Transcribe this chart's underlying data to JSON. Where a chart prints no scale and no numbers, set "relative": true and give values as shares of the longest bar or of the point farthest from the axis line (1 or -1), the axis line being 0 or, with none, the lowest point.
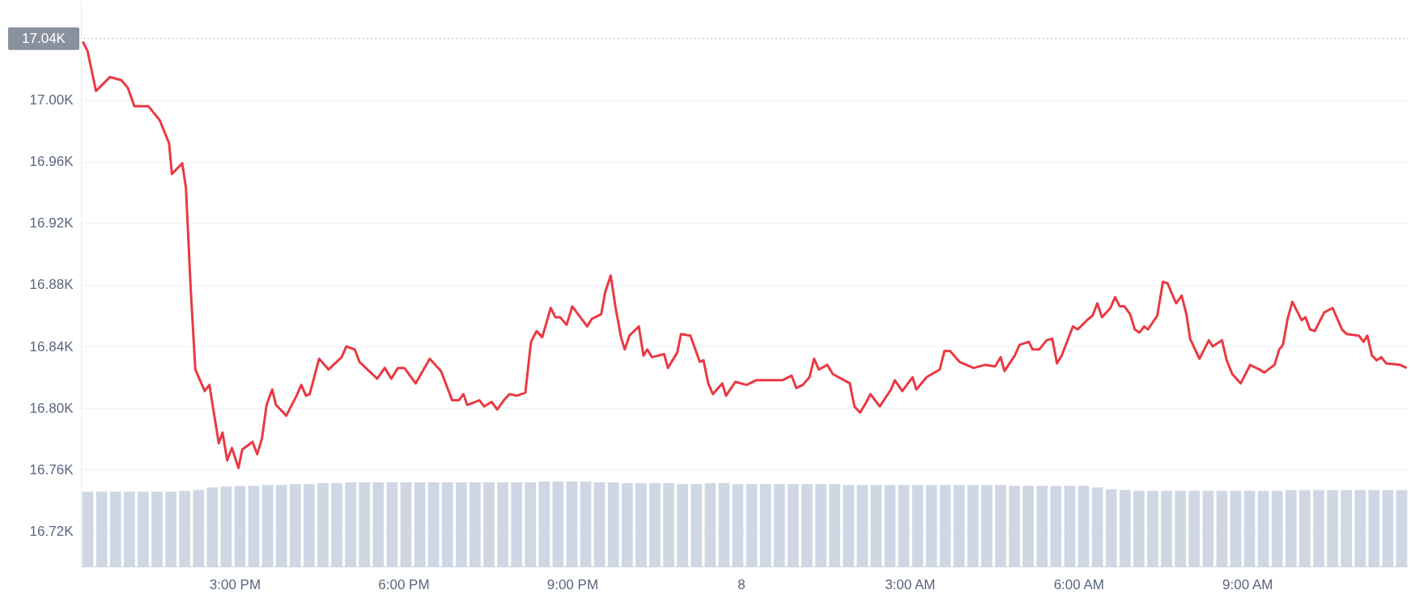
{
  "chart_data": [
    {
      "type": "line",
      "xlim": [
        "--12-07T12:16",
        "--12-08T11:52"
      ],
      "xticks": [
        {
          "value": "--12-07T15:00",
          "label": "3:00 PM"
        },
        {
          "value": "--12-07T18:00",
          "label": "6:00 PM"
        },
        {
          "value": "--12-07T21:00",
          "label": "9:00 PM"
        },
        {
          "value": "--12-08T00:00",
          "label": "8"
        },
        {
          "value": "--12-08T03:00",
          "label": "3:00 AM"
        },
        {
          "value": "--12-08T06:00",
          "label": "6:00 AM"
        },
        {
          "value": "--12-08T09:00",
          "label": "9:00 AM"
        }
      ],
      "ylim": [
        16.697,
        17.064
      ],
      "yticks": [
        {
          "value": 16.72,
          "label": "16.72K"
        },
        {
          "value": 16.76,
          "label": "16.76K"
        },
        {
          "value": 16.8,
          "label": "16.80K"
        },
        {
          "value": 16.84,
          "label": "16.84K"
        },
        {
          "value": 16.88,
          "label": "16.88K"
        },
        {
          "value": 16.92,
          "label": "16.92K"
        },
        {
          "value": 16.96,
          "label": "16.96K"
        },
        {
          "value": 17.0,
          "label": "17.00K"
        }
      ],
      "grid": "y",
      "ref_lines": [
        {
          "axis": "y",
          "value": 17.04,
          "label": "17.04K",
          "line_style": "dotted"
        }
      ],
      "x": [
        "--12-07T12:18",
        "--12-07T12:23",
        "--12-07T12:32",
        "--12-07T12:47",
        "--12-07T12:59",
        "--12-07T13:06",
        "--12-07T13:13",
        "--12-07T13:28",
        "--12-07T13:40",
        "--12-07T13:50",
        "--12-07T13:53",
        "--12-07T14:04",
        "--12-07T14:08",
        "--12-07T14:13",
        "--12-07T14:18",
        "--12-07T14:28",
        "--12-07T14:33",
        "--12-07T14:43",
        "--12-07T14:47",
        "--12-07T14:52",
        "--12-07T14:57",
        "--12-07T15:04",
        "--12-07T15:08",
        "--12-07T15:19",
        "--12-07T15:24",
        "--12-07T15:29",
        "--12-07T15:34",
        "--12-07T15:40",
        "--12-07T15:44",
        "--12-07T15:55",
        "--12-07T16:06",
        "--12-07T16:11",
        "--12-07T16:16",
        "--12-07T16:20",
        "--12-07T16:30",
        "--12-07T16:40",
        "--12-07T16:54",
        "--12-07T16:59",
        "--12-07T17:08",
        "--12-07T17:13",
        "--12-07T17:32",
        "--12-07T17:40",
        "--12-07T17:47",
        "--12-07T17:54",
        "--12-07T18:01",
        "--12-07T18:13",
        "--12-07T18:28",
        "--12-07T18:40",
        "--12-07T18:52",
        "--12-07T18:59",
        "--12-07T19:04",
        "--12-07T19:08",
        "--12-07T19:21",
        "--12-07T19:26",
        "--12-07T19:34",
        "--12-07T19:40",
        "--12-07T19:47",
        "--12-07T19:53",
        "--12-07T20:01",
        "--12-07T20:10",
        "--12-07T20:16",
        "--12-07T20:22",
        "--12-07T20:28",
        "--12-07T20:37",
        "--12-07T20:42",
        "--12-07T20:47",
        "--12-07T20:54",
        "--12-07T21:00",
        "--12-07T21:11",
        "--12-07T21:16",
        "--12-07T21:21",
        "--12-07T21:31",
        "--12-07T21:35",
        "--12-07T21:41",
        "--12-07T21:46",
        "--12-07T21:52",
        "--12-07T21:56",
        "--12-07T22:01",
        "--12-07T22:11",
        "--12-07T22:16",
        "--12-07T22:20",
        "--12-07T22:25",
        "--12-07T22:38",
        "--12-07T22:42",
        "--12-07T22:52",
        "--12-07T22:56",
        "--12-07T23:06",
        "--12-07T23:16",
        "--12-07T23:20",
        "--12-07T23:25",
        "--12-07T23:30",
        "--12-07T23:40",
        "--12-07T23:44",
        "--12-07T23:54",
        "--12-08T00:06",
        "--12-08T00:16",
        "--12-08T00:31",
        "--12-08T00:44",
        "--12-08T00:54",
        "--12-08T00:59",
        "--12-08T01:06",
        "--12-08T01:13",
        "--12-08T01:18",
        "--12-08T01:23",
        "--12-08T01:32",
        "--12-08T01:38",
        "--12-08T01:56",
        "--12-08T02:01",
        "--12-08T02:07",
        "--12-08T02:13",
        "--12-08T02:18",
        "--12-08T02:28",
        "--12-08T02:40",
        "--12-08T02:44",
        "--12-08T02:52",
        "--12-08T03:03",
        "--12-08T03:07",
        "--12-08T03:18",
        "--12-08T03:32",
        "--12-08T03:37",
        "--12-08T03:43",
        "--12-08T03:53",
        "--12-08T04:08",
        "--12-08T04:20",
        "--12-08T04:31",
        "--12-08T04:37",
        "--12-08T04:41",
        "--12-08T04:52",
        "--12-08T04:57",
        "--12-08T05:07",
        "--12-08T05:11",
        "--12-08T05:18",
        "--12-08T05:26",
        "--12-08T05:32",
        "--12-08T05:37",
        "--12-08T05:42",
        "--12-08T05:54",
        "--12-08T05:59",
        "--12-08T06:09",
        "--12-08T06:15",
        "--12-08T06:20",
        "--12-08T06:25",
        "--12-08T06:34",
        "--12-08T06:39",
        "--12-08T06:44",
        "--12-08T06:49",
        "--12-08T06:55",
        "--12-08T07:00",
        "--12-08T07:05",
        "--12-08T07:10",
        "--12-08T07:14",
        "--12-08T07:24",
        "--12-08T07:30",
        "--12-08T07:35",
        "--12-08T07:44",
        "--12-08T07:50",
        "--12-08T07:55",
        "--12-08T07:59",
        "--12-08T08:09",
        "--12-08T08:19",
        "--12-08T08:23",
        "--12-08T08:33",
        "--12-08T08:38",
        "--12-08T08:44",
        "--12-08T08:53",
        "--12-08T09:03",
        "--12-08T09:13",
        "--12-08T09:18",
        "--12-08T09:29",
        "--12-08T09:34",
        "--12-08T09:38",
        "--12-08T09:43",
        "--12-08T09:48",
        "--12-08T09:58",
        "--12-08T10:02",
        "--12-08T10:07",
        "--12-08T10:12",
        "--12-08T10:22",
        "--12-08T10:31",
        "--12-08T10:41",
        "--12-08T10:46",
        "--12-08T10:59",
        "--12-08T11:04",
        "--12-08T11:08",
        "--12-08T11:13",
        "--12-08T11:18",
        "--12-08T11:23",
        "--12-08T11:28",
        "--12-08T11:43",
        "--12-08T11:50"
      ],
      "series": [
        {
          "color": "#ea3943",
          "values": [
            17.038,
            17.032,
            17.006,
            17.015,
            17.013,
            17.008,
            16.996,
            16.996,
            16.987,
            16.972,
            16.952,
            16.959,
            16.943,
            16.878,
            16.825,
            16.811,
            16.815,
            16.777,
            16.784,
            16.766,
            16.774,
            16.761,
            16.773,
            16.778,
            16.77,
            16.78,
            16.802,
            16.812,
            16.802,
            16.795,
            16.808,
            16.815,
            16.808,
            16.809,
            16.832,
            16.825,
            16.833,
            16.84,
            16.838,
            16.83,
            16.819,
            16.826,
            16.819,
            16.826,
            16.826,
            16.816,
            16.832,
            16.824,
            16.805,
            16.805,
            16.809,
            16.802,
            16.805,
            16.801,
            16.804,
            16.799,
            16.805,
            16.809,
            16.808,
            16.81,
            16.843,
            16.85,
            16.846,
            16.865,
            16.859,
            16.859,
            16.854,
            16.866,
            16.857,
            16.853,
            16.858,
            16.861,
            16.875,
            16.886,
            16.866,
            16.846,
            16.838,
            16.847,
            16.853,
            16.834,
            16.838,
            16.833,
            16.835,
            16.826,
            16.836,
            16.848,
            16.847,
            16.83,
            16.831,
            16.816,
            16.809,
            16.816,
            16.808,
            16.817,
            16.815,
            16.818,
            16.818,
            16.818,
            16.821,
            16.813,
            16.815,
            16.82,
            16.832,
            16.825,
            16.828,
            16.822,
            16.816,
            16.801,
            16.797,
            16.803,
            16.809,
            16.801,
            16.812,
            16.818,
            16.811,
            16.82,
            16.812,
            16.82,
            16.825,
            16.837,
            16.837,
            16.83,
            16.826,
            16.828,
            16.827,
            16.833,
            16.824,
            16.834,
            16.841,
            16.843,
            16.838,
            16.838,
            16.844,
            16.845,
            16.829,
            16.834,
            16.853,
            16.851,
            16.857,
            16.86,
            16.868,
            16.859,
            16.865,
            16.872,
            16.866,
            16.866,
            16.861,
            16.851,
            16.849,
            16.853,
            16.851,
            16.86,
            16.882,
            16.881,
            16.868,
            16.873,
            16.861,
            16.845,
            16.832,
            16.844,
            16.84,
            16.844,
            16.831,
            16.822,
            16.816,
            16.828,
            16.825,
            16.823,
            16.828,
            16.838,
            16.841,
            16.858,
            16.869,
            16.857,
            16.859,
            16.851,
            16.85,
            16.862,
            16.865,
            16.851,
            16.848,
            16.847,
            16.843,
            16.847,
            16.834,
            16.831,
            16.833,
            16.829,
            16.828,
            16.826
          ]
        }
      ]
    },
    {
      "type": "bar",
      "relative": true,
      "categories": [
        null,
        null,
        null,
        null,
        null,
        null,
        null,
        null,
        null,
        null,
        null,
        null,
        null,
        null,
        null,
        null,
        null,
        null,
        null,
        null,
        null,
        null,
        null,
        null,
        null,
        null,
        null,
        null,
        null,
        null,
        null,
        null,
        null,
        null,
        null,
        null,
        null,
        null,
        null,
        null,
        null,
        null,
        null,
        null,
        null,
        null,
        null,
        null,
        null,
        null,
        null,
        null,
        null,
        null,
        null,
        null,
        null,
        null,
        null,
        null,
        null,
        null,
        null,
        null,
        null,
        null,
        null,
        null,
        null,
        null,
        null,
        null,
        null,
        null,
        null,
        null,
        null,
        null,
        null,
        null,
        null,
        null,
        null,
        null,
        null,
        null,
        null,
        null,
        null,
        null,
        null,
        null,
        null,
        null,
        null,
        null
      ],
      "series": [
        {
          "color": "#cfd6e4",
          "values": [
            0.88,
            0.88,
            0.88,
            0.88,
            0.88,
            0.88,
            0.88,
            0.89,
            0.9,
            0.93,
            0.94,
            0.95,
            0.95,
            0.96,
            0.96,
            0.97,
            0.97,
            0.98,
            0.98,
            0.99,
            0.99,
            0.99,
            0.99,
            0.99,
            0.99,
            0.99,
            0.99,
            0.99,
            0.99,
            0.99,
            0.99,
            0.99,
            0.99,
            1.0,
            1.0,
            1.0,
            1.0,
            0.99,
            0.99,
            0.98,
            0.98,
            0.98,
            0.98,
            0.97,
            0.97,
            0.98,
            0.98,
            0.97,
            0.97,
            0.97,
            0.97,
            0.97,
            0.97,
            0.97,
            0.97,
            0.96,
            0.96,
            0.96,
            0.96,
            0.96,
            0.96,
            0.96,
            0.96,
            0.96,
            0.96,
            0.96,
            0.96,
            0.95,
            0.95,
            0.95,
            0.95,
            0.95,
            0.95,
            0.93,
            0.91,
            0.9,
            0.89,
            0.89,
            0.89,
            0.89,
            0.89,
            0.89,
            0.89,
            0.89,
            0.89,
            0.89,
            0.89,
            0.9,
            0.9,
            0.9,
            0.9,
            0.9,
            0.9,
            0.9,
            0.9,
            0.9
          ]
        }
      ]
    }
  ]
}
